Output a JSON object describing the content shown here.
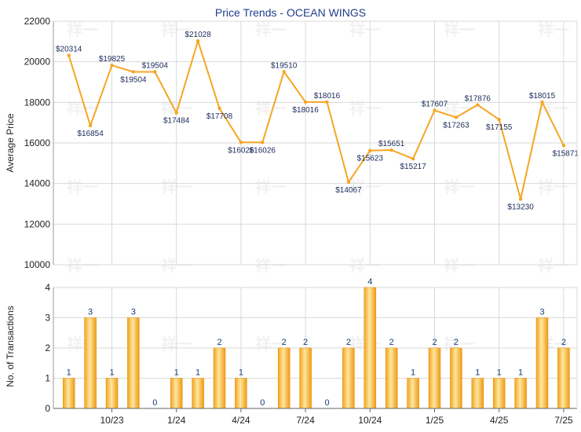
{
  "chart_data": [
    {
      "type": "line",
      "title": "Price Trends - OCEAN WINGS",
      "ylabel": "Average Price",
      "ylim": [
        10000,
        22000
      ],
      "yticks": [
        10000,
        12000,
        14000,
        16000,
        18000,
        20000,
        22000
      ],
      "xticks": [
        "10/23",
        "1/24",
        "4/24",
        "7/24",
        "10/24",
        "1/25",
        "4/25",
        "7/25"
      ],
      "grid": true,
      "series": [
        {
          "color": "#f5a623",
          "points": [
            {
              "x": "2023-08",
              "y": 20314,
              "label": "$20314"
            },
            {
              "x": "2023-09",
              "y": 16854,
              "label": "$16854"
            },
            {
              "x": "2023-10",
              "y": 19825,
              "label": "$19825"
            },
            {
              "x": "2023-11",
              "y": 19504,
              "label": "$19504"
            },
            {
              "x": "2023-12",
              "y": 19504,
              "label": "$19504"
            },
            {
              "x": "2024-01",
              "y": 17484,
              "label": "$17484"
            },
            {
              "x": "2024-02",
              "y": 21028,
              "label": "$21028"
            },
            {
              "x": "2024-03",
              "y": 17708,
              "label": "$17708"
            },
            {
              "x": "2024-04",
              "y": 16026,
              "label": "$16026"
            },
            {
              "x": "2024-05",
              "y": 16026,
              "label": "$16026"
            },
            {
              "x": "2024-06",
              "y": 19510,
              "label": "$19510"
            },
            {
              "x": "2024-07",
              "y": 18016,
              "label": "$18016"
            },
            {
              "x": "2024-08",
              "y": 18016,
              "label": "$18016"
            },
            {
              "x": "2024-09",
              "y": 14067,
              "label": "$14067"
            },
            {
              "x": "2024-10",
              "y": 15623,
              "label": "$15623"
            },
            {
              "x": "2024-11",
              "y": 15651,
              "label": "$15651"
            },
            {
              "x": "2024-12",
              "y": 15217,
              "label": "$15217"
            },
            {
              "x": "2025-01",
              "y": 17607,
              "label": "$17607"
            },
            {
              "x": "2025-02",
              "y": 17263,
              "label": "$17263"
            },
            {
              "x": "2025-03",
              "y": 17876,
              "label": "$17876"
            },
            {
              "x": "2025-04",
              "y": 17155,
              "label": "$17155"
            },
            {
              "x": "2025-05",
              "y": 13230,
              "label": "$13230"
            },
            {
              "x": "2025-06",
              "y": 18015,
              "label": "$18015"
            },
            {
              "x": "2025-07",
              "y": 15871,
              "label": "$15871"
            }
          ]
        }
      ]
    },
    {
      "type": "bar",
      "ylabel": "No. of Transactions",
      "ylim": [
        0,
        4
      ],
      "yticks": [
        0,
        1,
        2,
        3,
        4
      ],
      "xticks": [
        "10/23",
        "1/24",
        "4/24",
        "7/24",
        "10/24",
        "1/25",
        "4/25",
        "7/25"
      ],
      "grid": true,
      "categories": [
        "2023-08",
        "2023-09",
        "2023-10",
        "2023-11",
        "2023-12",
        "2024-01",
        "2024-02",
        "2024-03",
        "2024-04",
        "2024-05",
        "2024-06",
        "2024-07",
        "2024-08",
        "2024-09",
        "2024-10",
        "2024-11",
        "2024-12",
        "2025-01",
        "2025-02",
        "2025-03",
        "2025-04",
        "2025-05",
        "2025-06",
        "2025-07"
      ],
      "values": [
        1,
        3,
        1,
        3,
        0,
        1,
        1,
        2,
        1,
        0,
        2,
        2,
        0,
        2,
        4,
        2,
        1,
        2,
        2,
        1,
        1,
        1,
        3,
        2
      ],
      "bar_color": "#f5a623"
    }
  ],
  "colors": {
    "line": "#f5a623",
    "bar_light": "#fde7a0",
    "bar_dark": "#f09a10",
    "grid": "#d9d9d9",
    "title": "#1f3f8c"
  }
}
